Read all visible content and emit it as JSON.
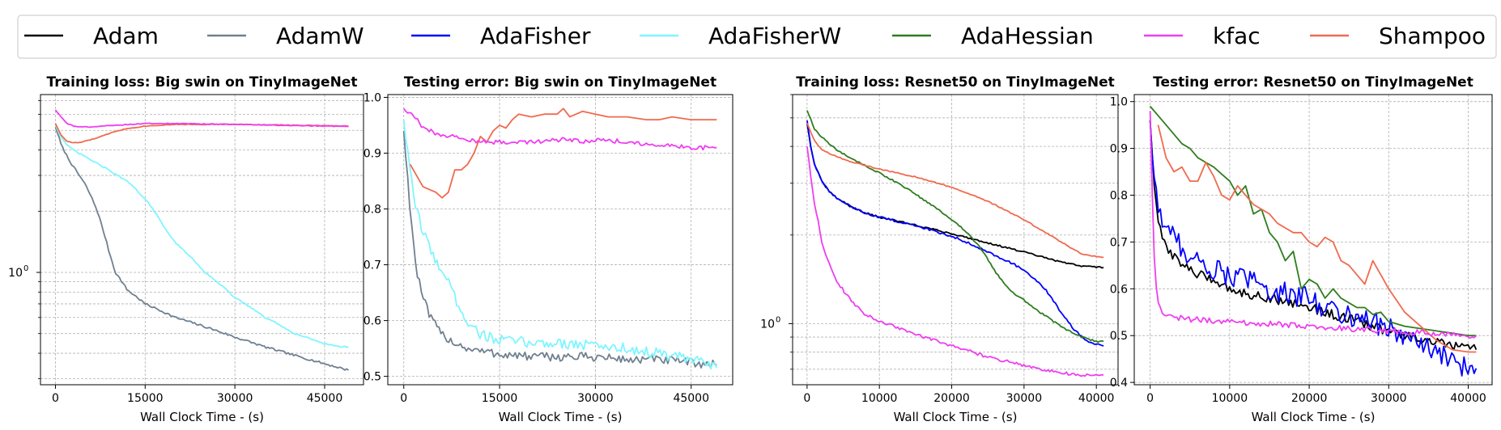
{
  "legend": [
    {
      "name": "Adam",
      "color": "#000000"
    },
    {
      "name": "AdamW",
      "color": "#708090"
    },
    {
      "name": "AdaFisher",
      "color": "#0000ff"
    },
    {
      "name": "AdaFisherW",
      "color": "#7ff5ff"
    },
    {
      "name": "AdaHessian",
      "color": "#2e7d1f"
    },
    {
      "name": "kfac",
      "color": "#ee3ef0"
    },
    {
      "name": "Shampoo",
      "color": "#f06a4e"
    }
  ],
  "chart_data": [
    {
      "type": "line",
      "title": "Training loss: Big swin on TinyImageNet",
      "xlabel": "Wall Clock Time - (s)",
      "ylabel": "",
      "yscale": "log",
      "xlim": [
        -2500,
        51500
      ],
      "ylim": [
        0.28,
        7.5
      ],
      "xticks": [
        "0",
        "15000",
        "30000",
        "45000"
      ],
      "yticks": [
        "10^0"
      ],
      "series": [
        {
          "name": "AdamW",
          "color": "#708090",
          "noise": 0.006,
          "x": [
            0,
            1000,
            2000,
            3000,
            4000,
            5000,
            6000,
            7000,
            8000,
            9000,
            10000,
            12000,
            15000,
            20000,
            25000,
            30000,
            35000,
            40000,
            45000,
            49000
          ],
          "y": [
            5.2,
            4.2,
            3.7,
            3.3,
            3.0,
            2.7,
            2.35,
            2.0,
            1.6,
            1.25,
            1.0,
            0.82,
            0.7,
            0.6,
            0.54,
            0.48,
            0.43,
            0.39,
            0.355,
            0.33
          ]
        },
        {
          "name": "AdaFisherW",
          "color": "#7ff5ff",
          "noise": 0.004,
          "x": [
            0,
            1000,
            2000,
            3000,
            5000,
            8000,
            10000,
            12000,
            15000,
            18000,
            20000,
            25000,
            30000,
            35000,
            40000,
            45000,
            48000,
            49000
          ],
          "y": [
            5.3,
            4.6,
            4.2,
            4.0,
            3.7,
            3.3,
            3.05,
            2.8,
            2.3,
            1.7,
            1.4,
            1.0,
            0.75,
            0.6,
            0.5,
            0.445,
            0.43,
            0.43
          ]
        },
        {
          "name": "Shampoo",
          "color": "#f06a4e",
          "noise": 0.002,
          "x": [
            0,
            1000,
            2000,
            3000,
            4000,
            6000,
            8000,
            10000,
            12000,
            15000,
            20000,
            30000,
            40000,
            49000
          ],
          "y": [
            5.4,
            4.7,
            4.4,
            4.35,
            4.35,
            4.5,
            4.7,
            4.95,
            5.1,
            5.25,
            5.35,
            5.35,
            5.3,
            5.25
          ]
        },
        {
          "name": "kfac",
          "color": "#ee3ef0",
          "noise": 0.002,
          "x": [
            0,
            1000,
            2000,
            3000,
            4000,
            6000,
            8000,
            10000,
            15000,
            20000,
            30000,
            40000,
            49000
          ],
          "y": [
            6.3,
            5.8,
            5.4,
            5.25,
            5.2,
            5.2,
            5.25,
            5.3,
            5.4,
            5.4,
            5.35,
            5.28,
            5.22
          ]
        }
      ]
    },
    {
      "type": "line",
      "title": "Testing error: Big swin on TinyImageNet",
      "xlabel": "Wall Clock Time - (s)",
      "ylabel": "",
      "yscale": "linear",
      "xlim": [
        -2500,
        51500
      ],
      "ylim": [
        0.485,
        1.005
      ],
      "xticks": [
        "0",
        "15000",
        "30000",
        "45000"
      ],
      "yticks": [
        "0.5",
        "0.6",
        "0.7",
        "0.8",
        "0.9",
        "1.0"
      ],
      "series": [
        {
          "name": "AdamW",
          "color": "#708090",
          "noise": 0.008,
          "x": [
            0,
            500,
            1000,
            1500,
            2000,
            3000,
            4000,
            5000,
            6000,
            8000,
            10000,
            12000,
            15000,
            20000,
            25000,
            30000,
            35000,
            40000,
            45000,
            49000
          ],
          "y": [
            0.94,
            0.87,
            0.8,
            0.74,
            0.69,
            0.64,
            0.61,
            0.59,
            0.575,
            0.56,
            0.55,
            0.545,
            0.54,
            0.535,
            0.535,
            0.535,
            0.53,
            0.53,
            0.525,
            0.52
          ]
        },
        {
          "name": "AdaFisherW",
          "color": "#7ff5ff",
          "noise": 0.01,
          "x": [
            0,
            500,
            1000,
            2000,
            3000,
            4000,
            5000,
            6000,
            7000,
            8000,
            10000,
            12000,
            15000,
            20000,
            25000,
            30000,
            35000,
            40000,
            45000,
            49000
          ],
          "y": [
            0.96,
            0.91,
            0.86,
            0.8,
            0.76,
            0.73,
            0.71,
            0.69,
            0.67,
            0.64,
            0.6,
            0.575,
            0.565,
            0.56,
            0.56,
            0.555,
            0.55,
            0.54,
            0.53,
            0.515
          ]
        },
        {
          "name": "Shampoo",
          "color": "#f06a4e",
          "noise": 0.0,
          "x": [
            1000,
            2000,
            3000,
            4000,
            5000,
            6000,
            7000,
            8000,
            9000,
            10000,
            11000,
            12000,
            13000,
            14000,
            15000,
            16000,
            17000,
            18000,
            20000,
            22000,
            24000,
            25000,
            26000,
            28000,
            30000,
            32000,
            35000,
            38000,
            40000,
            42000,
            45000,
            49000
          ],
          "y": [
            0.88,
            0.86,
            0.84,
            0.835,
            0.83,
            0.82,
            0.83,
            0.87,
            0.87,
            0.88,
            0.9,
            0.93,
            0.92,
            0.94,
            0.95,
            0.945,
            0.96,
            0.97,
            0.965,
            0.97,
            0.97,
            0.98,
            0.965,
            0.975,
            0.97,
            0.965,
            0.965,
            0.96,
            0.96,
            0.965,
            0.96,
            0.96
          ]
        },
        {
          "name": "kfac",
          "color": "#ee3ef0",
          "noise": 0.004,
          "x": [
            0,
            1000,
            2000,
            3000,
            5000,
            8000,
            10000,
            12000,
            15000,
            20000,
            25000,
            28000,
            30000,
            35000,
            40000,
            45000,
            49000
          ],
          "y": [
            0.98,
            0.97,
            0.96,
            0.945,
            0.935,
            0.93,
            0.925,
            0.92,
            0.92,
            0.92,
            0.925,
            0.92,
            0.925,
            0.92,
            0.915,
            0.91,
            0.91
          ]
        }
      ]
    },
    {
      "type": "line",
      "title": "Training loss: Resnet50 on TinyImageNet",
      "xlabel": "Wall Clock Time - (s)",
      "ylabel": "",
      "yscale": "log",
      "xlim": [
        -2000,
        43000
      ],
      "ylim": [
        0.62,
        6.0
      ],
      "xticks": [
        "0",
        "10000",
        "20000",
        "30000",
        "40000"
      ],
      "yticks": [
        "10^0"
      ],
      "series": [
        {
          "name": "Adam",
          "color": "#000000",
          "noise": 0.003,
          "x": [
            0,
            500,
            1000,
            2000,
            3000,
            4000,
            6000,
            8000,
            10000,
            15000,
            20000,
            25000,
            30000,
            35000,
            38000,
            41000
          ],
          "y": [
            4.8,
            4.0,
            3.5,
            3.05,
            2.82,
            2.68,
            2.5,
            2.38,
            2.3,
            2.16,
            2.02,
            1.88,
            1.75,
            1.62,
            1.57,
            1.55
          ]
        },
        {
          "name": "AdaFisher",
          "color": "#0000ff",
          "noise": 0.004,
          "x": [
            0,
            500,
            1000,
            2000,
            3000,
            4000,
            6000,
            8000,
            10000,
            15000,
            20000,
            23000,
            25000,
            28000,
            30000,
            33000,
            35000,
            37000,
            39000,
            41000
          ],
          "y": [
            4.9,
            4.0,
            3.5,
            3.05,
            2.82,
            2.68,
            2.5,
            2.38,
            2.3,
            2.15,
            1.98,
            1.85,
            1.75,
            1.62,
            1.52,
            1.3,
            1.1,
            0.95,
            0.86,
            0.84
          ]
        },
        {
          "name": "AdaHessian",
          "color": "#2e7d1f",
          "noise": 0.003,
          "x": [
            0,
            1000,
            2000,
            4000,
            6000,
            8000,
            10000,
            13000,
            16000,
            19000,
            22000,
            24000,
            26000,
            28000,
            30000,
            32000,
            34000,
            36000,
            38000,
            40000,
            41000
          ],
          "y": [
            5.3,
            4.6,
            4.3,
            3.9,
            3.65,
            3.45,
            3.25,
            2.95,
            2.65,
            2.35,
            2.05,
            1.8,
            1.5,
            1.3,
            1.2,
            1.1,
            1.02,
            0.95,
            0.9,
            0.87,
            0.87
          ]
        },
        {
          "name": "Shampoo",
          "color": "#f06a4e",
          "noise": 0.002,
          "x": [
            0,
            1000,
            2000,
            4000,
            6000,
            10000,
            15000,
            20000,
            25000,
            30000,
            35000,
            38000,
            41000
          ],
          "y": [
            4.8,
            4.2,
            3.9,
            3.7,
            3.55,
            3.35,
            3.15,
            2.9,
            2.6,
            2.25,
            1.9,
            1.72,
            1.68
          ]
        },
        {
          "name": "kfac",
          "color": "#ee3ef0",
          "noise": 0.006,
          "x": [
            0,
            500,
            1000,
            2000,
            3000,
            4000,
            6000,
            8000,
            10000,
            15000,
            20000,
            25000,
            30000,
            35000,
            38000,
            41000
          ],
          "y": [
            4.0,
            3.2,
            2.6,
            1.9,
            1.6,
            1.4,
            1.2,
            1.08,
            1.02,
            0.92,
            0.84,
            0.77,
            0.72,
            0.68,
            0.67,
            0.67
          ]
        }
      ]
    },
    {
      "type": "line",
      "title": "Testing error: Resnet50 on TinyImageNet",
      "xlabel": "Wall Clock Time - (s)",
      "ylabel": "",
      "yscale": "linear",
      "xlim": [
        -2000,
        43000
      ],
      "ylim": [
        0.395,
        1.015
      ],
      "xticks": [
        "0",
        "10000",
        "20000",
        "30000",
        "40000"
      ],
      "yticks": [
        "0.4",
        "0.5",
        "0.6",
        "0.7",
        "0.8",
        "0.9",
        "1.0"
      ],
      "series": [
        {
          "name": "Adam",
          "color": "#000000",
          "noise": 0.01,
          "x": [
            0,
            300,
            600,
            1000,
            1500,
            2000,
            3000,
            4000,
            5000,
            6000,
            8000,
            10000,
            12000,
            15000,
            18000,
            20000,
            22000,
            25000,
            28000,
            30000,
            33000,
            36000,
            39000,
            41000
          ],
          "y": [
            0.96,
            0.88,
            0.8,
            0.74,
            0.71,
            0.69,
            0.67,
            0.655,
            0.64,
            0.63,
            0.62,
            0.6,
            0.59,
            0.58,
            0.57,
            0.56,
            0.55,
            0.535,
            0.52,
            0.51,
            0.495,
            0.485,
            0.475,
            0.47
          ]
        },
        {
          "name": "AdaFisher",
          "color": "#0000ff",
          "noise": 0.024,
          "x": [
            0,
            300,
            600,
            1000,
            1500,
            2000,
            3000,
            4000,
            5000,
            6000,
            8000,
            10000,
            12000,
            15000,
            18000,
            20000,
            22000,
            25000,
            28000,
            30000,
            33000,
            36000,
            38000,
            40000,
            41000
          ],
          "y": [
            0.96,
            0.88,
            0.82,
            0.78,
            0.75,
            0.73,
            0.71,
            0.69,
            0.67,
            0.66,
            0.64,
            0.63,
            0.62,
            0.6,
            0.585,
            0.58,
            0.56,
            0.545,
            0.53,
            0.515,
            0.49,
            0.46,
            0.445,
            0.43,
            0.43
          ]
        },
        {
          "name": "AdaHessian",
          "color": "#2e7d1f",
          "noise": 0.0,
          "x": [
            0,
            1000,
            2000,
            3000,
            4000,
            5000,
            6000,
            7000,
            8000,
            9000,
            10000,
            11000,
            12000,
            13000,
            14000,
            15000,
            16000,
            17000,
            18000,
            19000,
            20000,
            21000,
            22000,
            23000,
            24000,
            25000,
            26000,
            27000,
            28000,
            29000,
            30000,
            32000,
            34000,
            36000,
            38000,
            40000,
            41000
          ],
          "y": [
            0.99,
            0.97,
            0.95,
            0.93,
            0.91,
            0.9,
            0.88,
            0.87,
            0.86,
            0.845,
            0.83,
            0.8,
            0.82,
            0.76,
            0.77,
            0.72,
            0.7,
            0.66,
            0.68,
            0.6,
            0.62,
            0.61,
            0.58,
            0.6,
            0.58,
            0.57,
            0.56,
            0.56,
            0.545,
            0.55,
            0.53,
            0.52,
            0.515,
            0.51,
            0.505,
            0.5,
            0.5
          ]
        },
        {
          "name": "Shampoo",
          "color": "#f06a4e",
          "noise": 0.0,
          "x": [
            1000,
            2000,
            3000,
            4000,
            5000,
            6000,
            7000,
            8000,
            9000,
            10000,
            11000,
            12000,
            13000,
            14000,
            15000,
            16000,
            17000,
            18000,
            19000,
            20000,
            21000,
            22000,
            23000,
            24000,
            25000,
            26000,
            27000,
            28000,
            30000,
            32000,
            34000,
            36000,
            38000,
            40000,
            41000
          ],
          "y": [
            0.95,
            0.88,
            0.85,
            0.86,
            0.83,
            0.83,
            0.87,
            0.84,
            0.8,
            0.79,
            0.82,
            0.8,
            0.78,
            0.77,
            0.76,
            0.74,
            0.73,
            0.72,
            0.72,
            0.7,
            0.69,
            0.71,
            0.7,
            0.66,
            0.65,
            0.63,
            0.61,
            0.66,
            0.6,
            0.55,
            0.52,
            0.49,
            0.47,
            0.465,
            0.465
          ]
        },
        {
          "name": "kfac",
          "color": "#ee3ef0",
          "noise": 0.006,
          "x": [
            0,
            300,
            600,
            1000,
            1500,
            2000,
            3000,
            5000,
            10000,
            15000,
            20000,
            25000,
            30000,
            35000,
            40000,
            41000
          ],
          "y": [
            0.98,
            0.78,
            0.63,
            0.57,
            0.55,
            0.545,
            0.54,
            0.535,
            0.53,
            0.525,
            0.52,
            0.515,
            0.51,
            0.505,
            0.5,
            0.5
          ]
        }
      ]
    }
  ]
}
